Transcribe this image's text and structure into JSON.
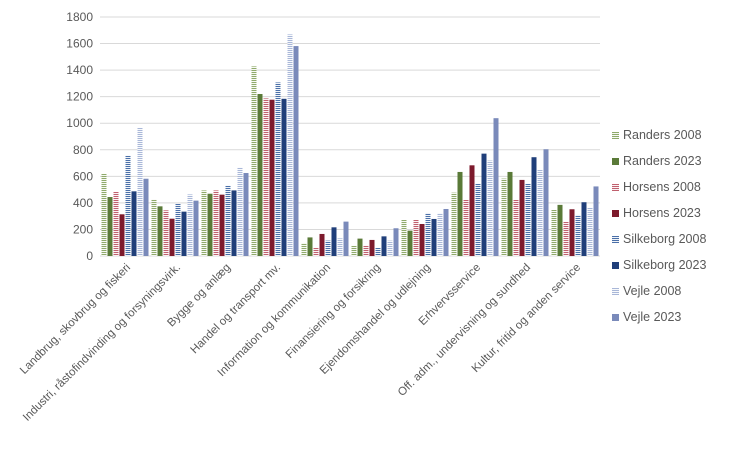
{
  "chart_data": {
    "type": "bar",
    "title": "",
    "xlabel": "",
    "ylabel": "",
    "ylim": [
      0,
      1800
    ],
    "yticks": [
      0,
      200,
      400,
      600,
      800,
      1000,
      1200,
      1400,
      1600,
      1800
    ],
    "grid": true,
    "legend_position": "right",
    "categories": [
      "Landbrug, skovbrug og fiskeri",
      "Industri, råstofindvinding og forsyningsvirk.",
      "Bygge og anlæg",
      "Handel og transport mv.",
      "Information og kommunikation",
      "Finansiering og forsikring",
      "Ejendomshandel og udlejning",
      "Erhvervsservice",
      "Off. adm., undervisning og sundhed",
      "Kultur, fritid og anden service"
    ],
    "series": [
      {
        "name": "Randers 2008",
        "color": "#8faa6a",
        "pattern": "striped",
        "values": [
          620,
          427,
          494,
          1428,
          98,
          80,
          274,
          477,
          583,
          347
        ]
      },
      {
        "name": "Randers 2023",
        "color": "#5a7a38",
        "pattern": "solid",
        "values": [
          444,
          374,
          469,
          1220,
          140,
          131,
          191,
          633,
          633,
          385
        ]
      },
      {
        "name": "Horsens 2008",
        "color": "#c0606e",
        "pattern": "striped",
        "values": [
          482,
          344,
          494,
          1187,
          63,
          80,
          274,
          425,
          425,
          258
        ]
      },
      {
        "name": "Horsens 2023",
        "color": "#7d1a2c",
        "pattern": "solid",
        "values": [
          314,
          281,
          462,
          1177,
          166,
          121,
          241,
          683,
          573,
          352
        ]
      },
      {
        "name": "Silkeborg 2008",
        "color": "#4a6fa8",
        "pattern": "striped",
        "values": [
          758,
          394,
          532,
          1307,
          116,
          63,
          324,
          545,
          545,
          309
        ]
      },
      {
        "name": "Silkeborg 2023",
        "color": "#203f7a",
        "pattern": "solid",
        "values": [
          487,
          334,
          494,
          1184,
          216,
          148,
          279,
          771,
          744,
          405
        ]
      },
      {
        "name": "Vejle 2008",
        "color": "#a9b7d8",
        "pattern": "striped",
        "values": [
          964,
          464,
          668,
          1669,
          133,
          116,
          324,
          719,
          651,
          362
        ]
      },
      {
        "name": "Vejle 2023",
        "color": "#7a8aba",
        "pattern": "solid",
        "values": [
          582,
          417,
          625,
          1581,
          259,
          209,
          354,
          1038,
          804,
          524
        ]
      }
    ]
  }
}
